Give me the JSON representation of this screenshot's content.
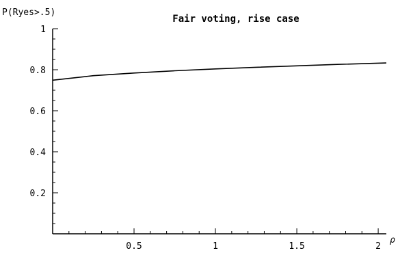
{
  "chart_data": {
    "type": "line",
    "title": "Fair voting, rise case",
    "ylabel": "P(Ryes>.5)",
    "xlabel": "ρ",
    "xlim": [
      0,
      2.05
    ],
    "ylim": [
      0,
      1
    ],
    "x_ticks": [
      0.5,
      1,
      1.5,
      2
    ],
    "x_tick_labels": [
      "0.5",
      "1",
      "1.5",
      "2"
    ],
    "y_ticks": [
      0.2,
      0.4,
      0.6,
      0.8,
      1
    ],
    "y_tick_labels": [
      "0.2",
      "0.4",
      "0.6",
      "0.8",
      "1"
    ],
    "grid": false,
    "series": [
      {
        "x": [
          0,
          0.25,
          0.5,
          0.75,
          1,
          1.25,
          1.5,
          1.75,
          2.05
        ],
        "y": [
          0.749,
          0.771,
          0.784,
          0.795,
          0.804,
          0.812,
          0.819,
          0.826,
          0.833
        ]
      }
    ]
  }
}
